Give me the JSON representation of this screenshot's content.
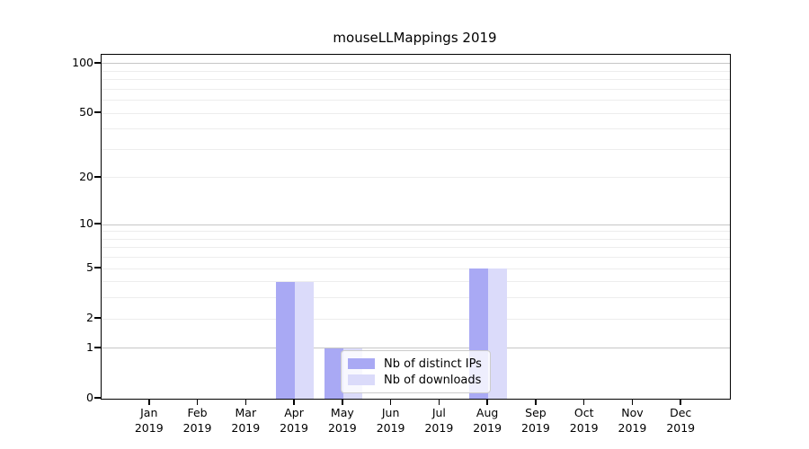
{
  "page": {
    "background": "#ffffff"
  },
  "chart_data": {
    "type": "bar",
    "title": "mouseLLMappings 2019",
    "categories": [
      "Jan",
      "Feb",
      "Mar",
      "Apr",
      "May",
      "Jun",
      "Jul",
      "Aug",
      "Sep",
      "Oct",
      "Nov",
      "Dec"
    ],
    "x_sublabel_year": "2019",
    "series": [
      {
        "name": "Nb of distinct IPs",
        "color": "#a9a9f4",
        "values": [
          0,
          0,
          0,
          4,
          1,
          0,
          0,
          5,
          0,
          0,
          0,
          0
        ]
      },
      {
        "name": "Nb of downloads",
        "color": "#dbdbfa",
        "values": [
          0,
          0,
          0,
          4,
          1,
          0,
          0,
          5,
          0,
          0,
          0,
          0
        ]
      }
    ],
    "yscale": "log1p",
    "ylim": [
      0,
      113
    ],
    "yticks": [
      0,
      1,
      2,
      5,
      10,
      20,
      50,
      100
    ],
    "gridlines": {
      "major": [
        1,
        10,
        100
      ],
      "minor": [
        2,
        3,
        4,
        5,
        6,
        7,
        8,
        9,
        20,
        30,
        40,
        50,
        60,
        70,
        80,
        90
      ]
    },
    "legend_position": "lower center",
    "grid": "horizontal-only",
    "colors": {
      "major_grid": "#c6c6c6",
      "minor_grid": "#ededed",
      "axis": "#000000",
      "legend_border": "#cccccc",
      "text": "#000000"
    }
  }
}
